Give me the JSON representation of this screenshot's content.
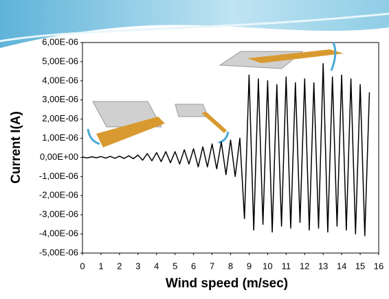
{
  "chart_data": {
    "type": "line",
    "x_label": "Wind speed (m/sec)",
    "y_label": "Current I(A)",
    "x": [
      0,
      0.25,
      0.5,
      0.75,
      1,
      1.25,
      1.5,
      1.75,
      2,
      2.25,
      2.5,
      2.75,
      3,
      3.25,
      3.5,
      3.75,
      4,
      4.25,
      4.5,
      4.75,
      5,
      5.25,
      5.5,
      5.75,
      6,
      6.25,
      6.5,
      6.75,
      7,
      7.25,
      7.5,
      7.75,
      8,
      8.25,
      8.5,
      8.75,
      9,
      9.25,
      9.5,
      9.75,
      10,
      10.25,
      10.5,
      10.75,
      11,
      11.25,
      11.5,
      11.75,
      12,
      12.25,
      12.5,
      12.75,
      13,
      13.25,
      13.5,
      13.75,
      14,
      14.25,
      14.5,
      14.75,
      15,
      15.25,
      15.5
    ],
    "series": [
      {
        "color": "#000000",
        "values": [
          2e-08,
          -3e-08,
          3e-08,
          -2e-08,
          4e-08,
          -4e-08,
          5e-08,
          -5e-08,
          6e-08,
          -6e-08,
          8e-08,
          -7e-08,
          1.2e-07,
          -1.5e-07,
          2e-07,
          -1.8e-07,
          2.5e-07,
          -2.2e-07,
          3e-07,
          -2.8e-07,
          3e-07,
          -3.5e-07,
          4e-07,
          -3.5e-07,
          4.5e-07,
          -5e-07,
          5.5e-07,
          -5e-07,
          7e-07,
          -6e-07,
          8e-07,
          -9e-07,
          9e-07,
          -1e-06,
          1e-06,
          -3.2e-06,
          4.3e-06,
          -3.8e-06,
          4.1e-06,
          -3.5e-06,
          4e-06,
          -3.9e-06,
          3.8e-06,
          -3.6e-06,
          4.2e-06,
          -3.7e-06,
          3.9e-06,
          -3.4e-06,
          4.1e-06,
          -3.8e-06,
          3.9e-06,
          -3.7e-06,
          4.9e-06,
          -3.9e-06,
          4.2e-06,
          -3.6e-06,
          4.3e-06,
          -3.8e-06,
          4.1e-06,
          -4e-06,
          3.8e-06,
          -4.1e-06,
          3.4e-06
        ]
      }
    ],
    "xlim": [
      0,
      16
    ],
    "xticks": [
      0,
      1,
      2,
      3,
      4,
      5,
      6,
      7,
      8,
      9,
      10,
      11,
      12,
      13,
      14,
      15,
      16
    ],
    "ylim": [
      -5e-06,
      6e-06
    ],
    "yticks": [
      {
        "value": -5e-06,
        "label": "-5,00E-06"
      },
      {
        "value": -4e-06,
        "label": "-4,00E-06"
      },
      {
        "value": -3e-06,
        "label": "-3,00E-06"
      },
      {
        "value": -2e-06,
        "label": "-2,00E-06"
      },
      {
        "value": -1e-06,
        "label": "-1,00E-06"
      },
      {
        "value": 0,
        "label": "0,00E+00"
      },
      {
        "value": 1e-06,
        "label": "1,00E-06"
      },
      {
        "value": 2e-06,
        "label": "2,00E-06"
      },
      {
        "value": 3e-06,
        "label": "3,00E-06"
      },
      {
        "value": 4e-06,
        "label": "4,00E-06"
      },
      {
        "value": 5e-06,
        "label": "5,00E-06"
      },
      {
        "value": 6e-06,
        "label": "6,00E-06"
      }
    ]
  }
}
